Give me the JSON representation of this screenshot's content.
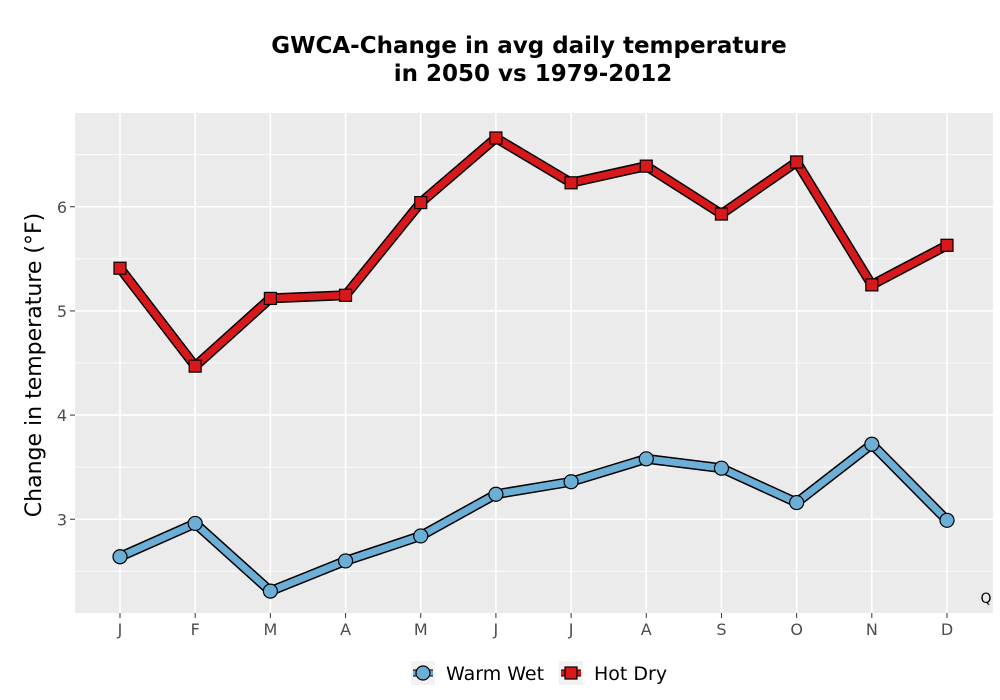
{
  "chart_data": {
    "type": "line",
    "title_lines": [
      "GWCA-Change in avg daily temperature",
      "in 2050 vs 1979-2012"
    ],
    "ylabel": "Change in temperature (°F)",
    "xlabel": "",
    "categories": [
      "J",
      "F",
      "M",
      "A",
      "M",
      "J",
      "J",
      "A",
      "S",
      "O",
      "N",
      "D"
    ],
    "ylim": [
      2.1,
      6.9
    ],
    "yticks": [
      3,
      4,
      5,
      6
    ],
    "grid": true,
    "legend_position": "bottom",
    "corner_label": "Q",
    "series": [
      {
        "name": "Warm Wet",
        "marker": "circle",
        "color": "#6baed6",
        "values": [
          2.64,
          2.96,
          2.31,
          2.6,
          2.84,
          3.24,
          3.36,
          3.58,
          3.49,
          3.16,
          3.72,
          2.99
        ]
      },
      {
        "name": "Hot Dry",
        "marker": "square",
        "color": "#d7191c",
        "values": [
          5.41,
          4.47,
          5.12,
          5.15,
          6.04,
          6.66,
          6.23,
          6.39,
          5.93,
          6.43,
          5.25,
          5.63
        ]
      }
    ]
  }
}
